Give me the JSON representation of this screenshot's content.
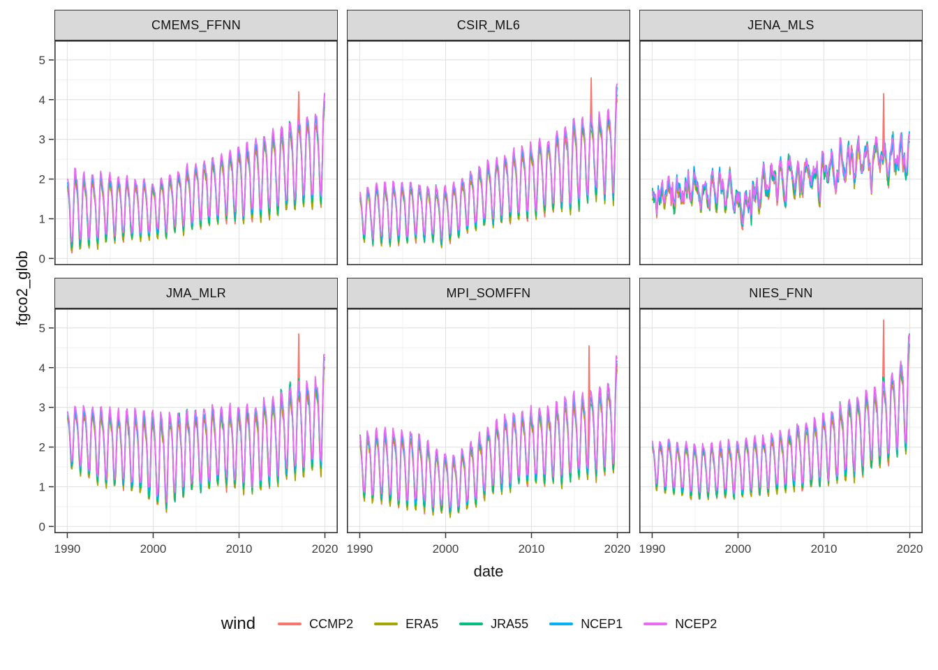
{
  "axes": {
    "x": {
      "title": "date",
      "ticks": [
        1990,
        2000,
        2010,
        2020
      ],
      "minor_ticks": [
        1995,
        2005,
        2015
      ],
      "domain": [
        1988.5,
        2021.5
      ]
    },
    "y": {
      "title": "fgco2_glob",
      "ticks": [
        0,
        1,
        2,
        3,
        4,
        5
      ],
      "minor_ticks": [
        0.5,
        1.5,
        2.5,
        3.5,
        4.5
      ],
      "domain": [
        -0.17,
        5.49
      ]
    }
  },
  "legend": {
    "title": "wind"
  },
  "style": {
    "grid_major": "#e3e3e3",
    "grid_minor": "#f1f1f1",
    "panel_border": "#333333",
    "strip_fill": "#d9d9d9",
    "tick_color": "#333333",
    "tick_label_color": "#3d3d3d",
    "background": "#ffffff"
  },
  "chart_data": {
    "type": "line",
    "x_unit": "monthly",
    "x_range": [
      1990,
      2020
    ],
    "note": "six facets of fgco2_glob vs date; five wind-product series per facet; values read from axis gridlines",
    "facets": [
      {
        "name": "CMEMS_FFNN",
        "mid": [
          [
            1990,
            1.2
          ],
          [
            1995,
            1.28
          ],
          [
            2000,
            1.22
          ],
          [
            2004,
            1.52
          ],
          [
            2008,
            1.8
          ],
          [
            2012,
            2.0
          ],
          [
            2015,
            2.25
          ],
          [
            2017,
            2.45
          ],
          [
            2019,
            2.5
          ],
          [
            2020,
            2.8
          ]
        ],
        "amp": [
          [
            1990,
            1.0
          ],
          [
            1995,
            0.8
          ],
          [
            2000,
            0.72
          ],
          [
            2004,
            0.78
          ],
          [
            2008,
            0.8
          ],
          [
            2012,
            1.0
          ],
          [
            2015,
            1.05
          ],
          [
            2017,
            1.1
          ],
          [
            2019,
            1.08
          ],
          [
            2020,
            1.35
          ]
        ],
        "irregular": false,
        "ccmp2_spike": {
          "t": 2016.95,
          "value": 4.2
        }
      },
      {
        "name": "CSIR_ML6",
        "mid": [
          [
            1990,
            1.12
          ],
          [
            1993,
            1.12
          ],
          [
            1996,
            1.2
          ],
          [
            2000,
            1.08
          ],
          [
            2004,
            1.55
          ],
          [
            2008,
            1.85
          ],
          [
            2012,
            2.1
          ],
          [
            2015,
            2.4
          ],
          [
            2017,
            2.55
          ],
          [
            2019,
            2.62
          ],
          [
            2020,
            2.95
          ]
        ],
        "amp": [
          [
            1990,
            0.62
          ],
          [
            1993,
            0.78
          ],
          [
            1996,
            0.7
          ],
          [
            2000,
            0.68
          ],
          [
            2004,
            0.75
          ],
          [
            2008,
            0.85
          ],
          [
            2012,
            0.9
          ],
          [
            2015,
            1.1
          ],
          [
            2017,
            1.05
          ],
          [
            2019,
            1.08
          ],
          [
            2020,
            1.4
          ]
        ],
        "irregular": false,
        "ccmp2_spike": {
          "t": 2016.95,
          "value": 4.55
        }
      },
      {
        "name": "JENA_MLS",
        "mid": [
          [
            1990,
            1.45
          ],
          [
            1993,
            1.7
          ],
          [
            1996,
            1.55
          ],
          [
            1999,
            1.7
          ],
          [
            2001,
            1.35
          ],
          [
            2004,
            1.95
          ],
          [
            2008,
            1.85
          ],
          [
            2012,
            2.25
          ],
          [
            2016,
            2.35
          ],
          [
            2019,
            2.55
          ],
          [
            2020,
            2.6
          ]
        ],
        "amp": [
          [
            1990,
            0.55
          ],
          [
            1993,
            0.65
          ],
          [
            1996,
            0.55
          ],
          [
            1999,
            0.6
          ],
          [
            2001,
            0.75
          ],
          [
            2004,
            0.65
          ],
          [
            2008,
            0.65
          ],
          [
            2012,
            0.65
          ],
          [
            2016,
            0.65
          ],
          [
            2019,
            0.65
          ],
          [
            2020,
            0.55
          ]
        ],
        "irregular": true,
        "ccmp2_spike": {
          "t": 2016.95,
          "value": 4.15
        }
      },
      {
        "name": "JMA_MLR",
        "mid": [
          [
            1990,
            2.28
          ],
          [
            1993,
            2.1
          ],
          [
            1996,
            1.95
          ],
          [
            1999,
            1.88
          ],
          [
            2001,
            1.65
          ],
          [
            2004,
            1.9
          ],
          [
            2008,
            2.03
          ],
          [
            2012,
            2.0
          ],
          [
            2015,
            2.28
          ],
          [
            2017,
            2.45
          ],
          [
            2019,
            2.6
          ],
          [
            2020,
            2.95
          ]
        ],
        "amp": [
          [
            1990,
            0.73
          ],
          [
            1993,
            0.9
          ],
          [
            1996,
            0.95
          ],
          [
            1999,
            1.03
          ],
          [
            2001,
            1.2
          ],
          [
            2004,
            1.0
          ],
          [
            2008,
            0.98
          ],
          [
            2012,
            1.1
          ],
          [
            2015,
            1.08
          ],
          [
            2017,
            1.15
          ],
          [
            2019,
            1.1
          ],
          [
            2020,
            1.45
          ]
        ],
        "irregular": false,
        "ccmp2_spike": {
          "t": 2016.95,
          "value": 4.85
        }
      },
      {
        "name": "MPI_SOMFFN",
        "mid": [
          [
            1990,
            1.53
          ],
          [
            1993,
            1.5
          ],
          [
            1996,
            1.45
          ],
          [
            1999,
            1.13
          ],
          [
            2001,
            1.03
          ],
          [
            2003,
            1.33
          ],
          [
            2006,
            1.8
          ],
          [
            2009,
            2.0
          ],
          [
            2012,
            2.05
          ],
          [
            2015,
            2.25
          ],
          [
            2017,
            2.35
          ],
          [
            2019,
            2.48
          ],
          [
            2020,
            2.85
          ]
        ],
        "amp": [
          [
            1990,
            0.83
          ],
          [
            1993,
            0.9
          ],
          [
            1996,
            0.95
          ],
          [
            1999,
            0.78
          ],
          [
            2001,
            0.73
          ],
          [
            2003,
            0.78
          ],
          [
            2006,
            0.9
          ],
          [
            2009,
            0.9
          ],
          [
            2012,
            0.95
          ],
          [
            2015,
            1.05
          ],
          [
            2017,
            1.05
          ],
          [
            2019,
            1.13
          ],
          [
            2020,
            1.45
          ]
        ],
        "irregular": false,
        "ccmp2_spike": {
          "t": 2016.7,
          "value": 4.55
        }
      },
      {
        "name": "NIES_FNN",
        "mid": [
          [
            1990,
            1.6
          ],
          [
            1993,
            1.45
          ],
          [
            1996,
            1.38
          ],
          [
            1999,
            1.43
          ],
          [
            2002,
            1.5
          ],
          [
            2005,
            1.63
          ],
          [
            2008,
            1.8
          ],
          [
            2011,
            2.0
          ],
          [
            2014,
            2.3
          ],
          [
            2016,
            2.5
          ],
          [
            2018,
            2.8
          ],
          [
            2019,
            3.1
          ],
          [
            2020,
            3.35
          ]
        ],
        "amp": [
          [
            1990,
            0.6
          ],
          [
            1993,
            0.65
          ],
          [
            1996,
            0.68
          ],
          [
            1999,
            0.68
          ],
          [
            2002,
            0.7
          ],
          [
            2005,
            0.73
          ],
          [
            2008,
            0.8
          ],
          [
            2011,
            0.9
          ],
          [
            2014,
            1.0
          ],
          [
            2016,
            1.0
          ],
          [
            2018,
            1.1
          ],
          [
            2019,
            1.1
          ],
          [
            2020,
            1.5
          ]
        ],
        "irregular": false,
        "ccmp2_spike": {
          "t": 2016.95,
          "value": 5.2
        }
      }
    ],
    "series": [
      {
        "name": "CCMP2",
        "color": "#F8766D",
        "offset": -0.02,
        "peak_scale": 0.92,
        "trough_scale": 1.02,
        "spike": true
      },
      {
        "name": "ERA5",
        "color": "#A3A500",
        "offset": -0.03,
        "peak_scale": 0.9,
        "trough_scale": 1.04,
        "spike": false
      },
      {
        "name": "JRA55",
        "color": "#00BF7D",
        "offset": 0.0,
        "peak_scale": 1.0,
        "trough_scale": 1.0,
        "spike": false
      },
      {
        "name": "NCEP1",
        "color": "#00B0F6",
        "offset": 0.02,
        "peak_scale": 1.05,
        "trough_scale": 0.9,
        "spike": false
      },
      {
        "name": "NCEP2",
        "color": "#E76BF3",
        "offset": 0.03,
        "peak_scale": 1.15,
        "trough_scale": 0.86,
        "spike": false
      }
    ]
  }
}
